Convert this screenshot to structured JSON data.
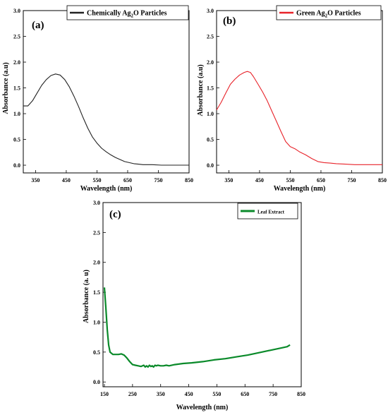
{
  "chart_data": [
    {
      "type": "line",
      "panel_label": "(a)",
      "xlabel": "Wavelength (nm)",
      "ylabel": "Absorbance (a.u)",
      "xlim": [
        310,
        850
      ],
      "ylim": [
        -0.15,
        3.0
      ],
      "xticks": [
        350,
        450,
        550,
        650,
        750,
        850
      ],
      "yticks": [
        "0.0",
        "0.5",
        "1.0",
        "1.5",
        "2.0",
        "2.5",
        "3.0"
      ],
      "legend": "top-right",
      "series": [
        {
          "name": "Chemically Ag₂O Particles",
          "color": "#222222",
          "x": [
            310,
            325,
            340,
            355,
            370,
            385,
            400,
            415,
            430,
            445,
            460,
            475,
            490,
            505,
            520,
            535,
            550,
            565,
            580,
            595,
            610,
            625,
            640,
            655,
            670,
            685,
            700,
            730,
            760,
            800,
            850
          ],
          "y": [
            1.15,
            1.15,
            1.25,
            1.4,
            1.55,
            1.66,
            1.74,
            1.77,
            1.75,
            1.66,
            1.52,
            1.34,
            1.14,
            0.92,
            0.72,
            0.55,
            0.43,
            0.33,
            0.26,
            0.2,
            0.15,
            0.11,
            0.07,
            0.05,
            0.03,
            0.02,
            0.01,
            0.01,
            0.0,
            0.0,
            0.0
          ]
        }
      ]
    },
    {
      "type": "line",
      "panel_label": "(b)",
      "xlabel": "Wavelength (nm)",
      "ylabel": "Absorbance (a.u)",
      "xlim": [
        310,
        850
      ],
      "ylim": [
        -0.15,
        3.0
      ],
      "xticks": [
        350,
        450,
        550,
        650,
        750,
        850
      ],
      "yticks": [
        "0.0",
        "0.5",
        "1.0",
        "1.5",
        "2.0",
        "2.5",
        "3.0"
      ],
      "legend": "top-right",
      "series": [
        {
          "name": "Green Ag₂O Particles",
          "color": "#e8232a",
          "x": [
            310,
            325,
            340,
            355,
            370,
            385,
            400,
            410,
            420,
            430,
            445,
            460,
            475,
            490,
            505,
            520,
            535,
            550,
            565,
            580,
            600,
            620,
            640,
            660,
            680,
            700,
            730,
            760,
            800,
            850
          ],
          "y": [
            1.07,
            1.22,
            1.4,
            1.57,
            1.67,
            1.75,
            1.8,
            1.82,
            1.8,
            1.72,
            1.57,
            1.42,
            1.25,
            1.05,
            0.85,
            0.65,
            0.46,
            0.36,
            0.32,
            0.26,
            0.2,
            0.13,
            0.07,
            0.05,
            0.04,
            0.03,
            0.02,
            0.01,
            0.01,
            0.01
          ]
        }
      ]
    },
    {
      "type": "line",
      "panel_label": "(c)",
      "xlabel": "Wavelength (nm)",
      "ylabel": "Absorbance (a. u)",
      "xlim": [
        145,
        850
      ],
      "ylim": [
        -0.08,
        3.0
      ],
      "xticks": [
        150,
        250,
        350,
        450,
        550,
        650,
        750,
        850
      ],
      "yticks": [
        "0.0",
        "0.5",
        "1.0",
        "1.5",
        "2.0",
        "2.5",
        "3.0"
      ],
      "legend": "top-right",
      "series": [
        {
          "name": "Leaf Extract",
          "color": "#0a8a2a",
          "x": [
            150,
            155,
            160,
            165,
            170,
            180,
            190,
            200,
            210,
            220,
            230,
            240,
            250,
            260,
            270,
            280,
            290,
            295,
            300,
            305,
            310,
            315,
            320,
            325,
            330,
            335,
            340,
            350,
            360,
            370,
            380,
            400,
            430,
            460,
            500,
            540,
            580,
            620,
            660,
            700,
            740,
            780,
            800,
            810
          ],
          "y": [
            1.58,
            1.25,
            0.88,
            0.62,
            0.5,
            0.46,
            0.46,
            0.46,
            0.47,
            0.45,
            0.4,
            0.34,
            0.29,
            0.28,
            0.27,
            0.26,
            0.28,
            0.25,
            0.27,
            0.25,
            0.28,
            0.26,
            0.27,
            0.25,
            0.28,
            0.27,
            0.28,
            0.27,
            0.27,
            0.28,
            0.27,
            0.29,
            0.31,
            0.32,
            0.34,
            0.37,
            0.39,
            0.42,
            0.45,
            0.49,
            0.53,
            0.57,
            0.59,
            0.62
          ]
        }
      ]
    }
  ]
}
